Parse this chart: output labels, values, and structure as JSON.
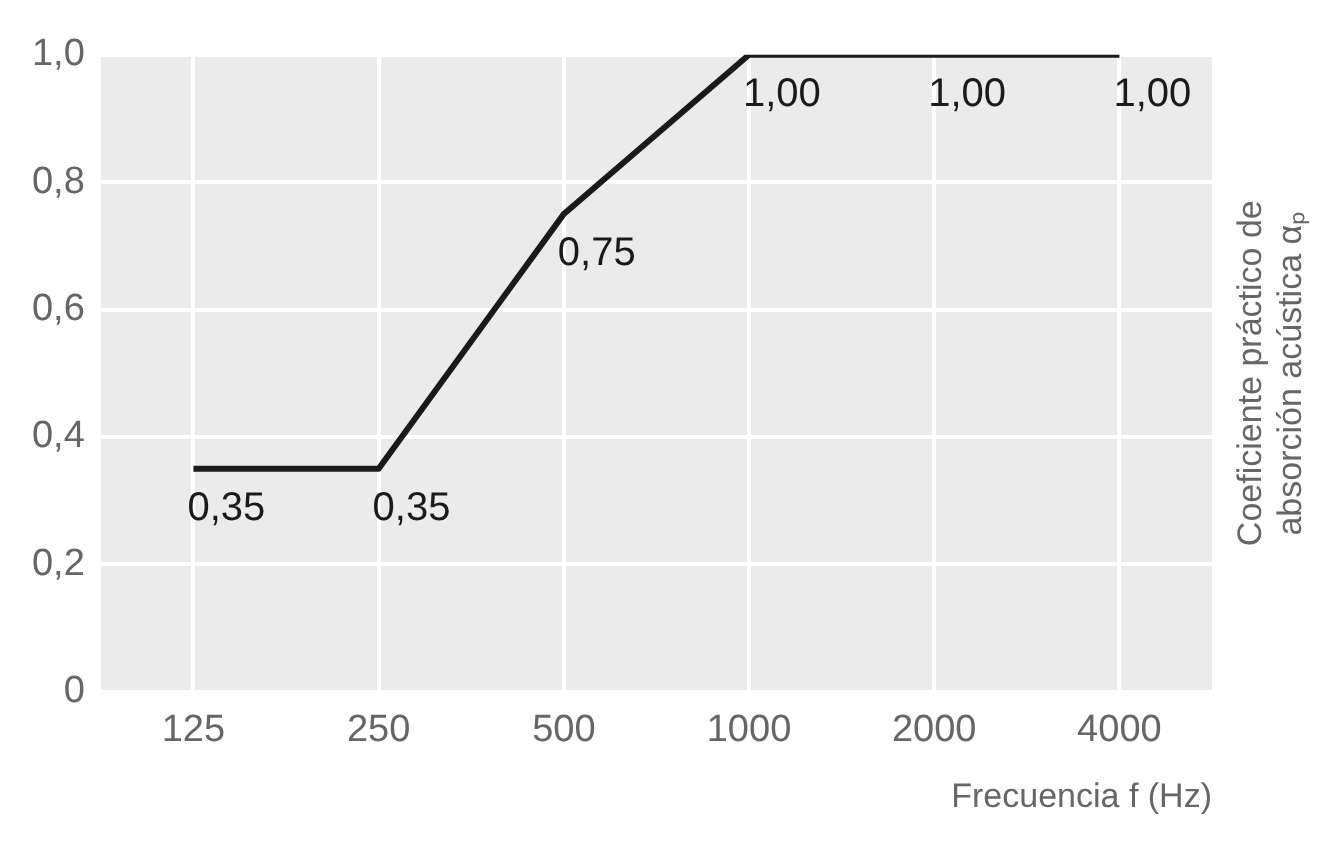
{
  "chart_data": {
    "type": "line",
    "xlabel": "Frecuencia f (Hz)",
    "ylabel": "Coeficiente práctico de\nabsorción acústica αₚ",
    "categories": [
      "125",
      "250",
      "500",
      "1000",
      "2000",
      "4000"
    ],
    "series": [
      {
        "color": "#1a1a1a",
        "values": [
          0.35,
          0.35,
          0.75,
          1,
          1,
          1
        ],
        "value_labels": [
          "0,35",
          "0,35",
          "0,75",
          "1,00",
          "1,00",
          "1,00"
        ]
      }
    ],
    "ylim": [
      0,
      1
    ],
    "yticks": [
      {
        "value": 0,
        "label": "0"
      },
      {
        "value": 0.2,
        "label": "0,2"
      },
      {
        "value": 0.4,
        "label": "0,4"
      },
      {
        "value": 0.6,
        "label": "0,6"
      },
      {
        "value": 0.8,
        "label": "0,8"
      },
      {
        "value": 1,
        "label": "1,0"
      }
    ],
    "grid": true,
    "legend": false,
    "marker": "none",
    "line_style": "solid"
  }
}
